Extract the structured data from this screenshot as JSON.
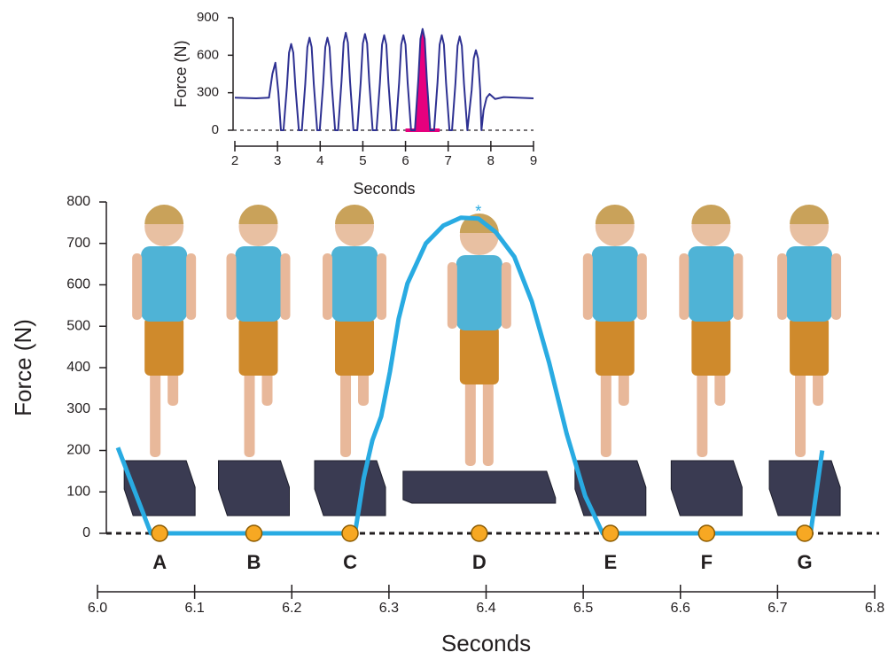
{
  "chart_data": [
    {
      "type": "line",
      "xlabel": "Seconds",
      "ylabel": "Force  (N)",
      "xlim": [
        2,
        9
      ],
      "xticks": [
        2,
        3,
        4,
        5,
        6,
        7,
        8,
        9
      ],
      "ylim": [
        0,
        900
      ],
      "yticks": [
        0,
        300,
        600,
        900
      ],
      "series": [
        {
          "color": "#2e3192",
          "x": [
            2.0,
            2.5,
            2.8,
            2.88,
            2.95,
            3.02,
            3.08,
            3.14,
            3.22,
            3.27,
            3.32,
            3.37,
            3.42,
            3.5,
            3.57,
            3.65,
            3.7,
            3.75,
            3.8,
            3.85,
            3.93,
            3.99,
            4.07,
            4.12,
            4.17,
            4.22,
            4.27,
            4.35,
            4.42,
            4.5,
            4.55,
            4.6,
            4.65,
            4.7,
            4.78,
            4.87,
            4.95,
            5.0,
            5.05,
            5.1,
            5.15,
            5.23,
            5.32,
            5.4,
            5.45,
            5.5,
            5.55,
            5.6,
            5.68,
            5.77,
            5.85,
            5.9,
            5.95,
            6.0,
            6.05,
            6.13,
            6.22,
            6.3,
            6.35,
            6.4,
            6.45,
            6.5,
            6.58,
            6.67,
            6.75,
            6.8,
            6.85,
            6.9,
            6.95,
            7.03,
            7.09,
            7.17,
            7.22,
            7.27,
            7.32,
            7.37,
            7.45,
            7.55,
            7.6,
            7.65,
            7.7,
            7.75,
            7.78,
            7.83,
            7.9,
            7.97,
            8.1,
            8.3,
            9.0
          ],
          "values": [
            260,
            255,
            260,
            450,
            540,
            300,
            0,
            0,
            345,
            620,
            690,
            620,
            345,
            0,
            0,
            370,
            665,
            740,
            665,
            370,
            0,
            0,
            370,
            665,
            740,
            665,
            370,
            0,
            0,
            390,
            700,
            780,
            700,
            390,
            0,
            0,
            385,
            695,
            770,
            695,
            385,
            0,
            0,
            380,
            685,
            760,
            685,
            380,
            0,
            0,
            380,
            685,
            760,
            685,
            380,
            0,
            0,
            405,
            730,
            810,
            730,
            405,
            0,
            0,
            380,
            685,
            760,
            685,
            380,
            0,
            0,
            375,
            675,
            750,
            675,
            375,
            0,
            320,
            575,
            640,
            575,
            320,
            0,
            160,
            260,
            290,
            250,
            265,
            255
          ]
        }
      ],
      "highlight": {
        "xlim": [
          6.0,
          6.8
        ],
        "color": "#e6007e"
      }
    },
    {
      "type": "line",
      "xlabel": "Seconds",
      "ylabel": "Force  (N)",
      "xlim": [
        6.0,
        6.8
      ],
      "xticks": [
        {
          "value": 6.0,
          "label": "6.0"
        },
        6.1,
        6.2,
        6.3,
        6.4,
        6.5,
        6.6,
        6.7,
        6.8
      ],
      "ylim": [
        0,
        800
      ],
      "yticks": [
        0,
        100,
        200,
        300,
        400,
        500,
        600,
        700,
        800
      ],
      "series": [
        {
          "color": "#29abe2",
          "x": [
            6.021,
            6.055,
            6.265,
            6.269,
            6.274,
            6.283,
            6.292,
            6.301,
            6.31,
            6.319,
            6.338,
            6.356,
            6.374,
            6.392,
            6.41,
            6.429,
            6.447,
            6.465,
            6.483,
            6.502,
            6.52,
            6.734,
            6.746
          ],
          "values": [
            207,
            0,
            0,
            58,
            133,
            225,
            282,
            390,
            518,
            603,
            700,
            743,
            762,
            760,
            727,
            668,
            560,
            411,
            240,
            90,
            0,
            0,
            200
          ]
        }
      ],
      "events": {
        "color": "#f7a823",
        "labels": [
          "A",
          "B",
          "C",
          "D",
          "E",
          "F",
          "G"
        ],
        "x": [
          6.064,
          6.161,
          6.26,
          6.393,
          6.528,
          6.627,
          6.728
        ],
        "y": [
          0,
          0,
          0,
          0,
          0,
          0,
          0
        ]
      },
      "annotation": {
        "text": "*",
        "x": 6.392,
        "y": 775
      }
    }
  ]
}
